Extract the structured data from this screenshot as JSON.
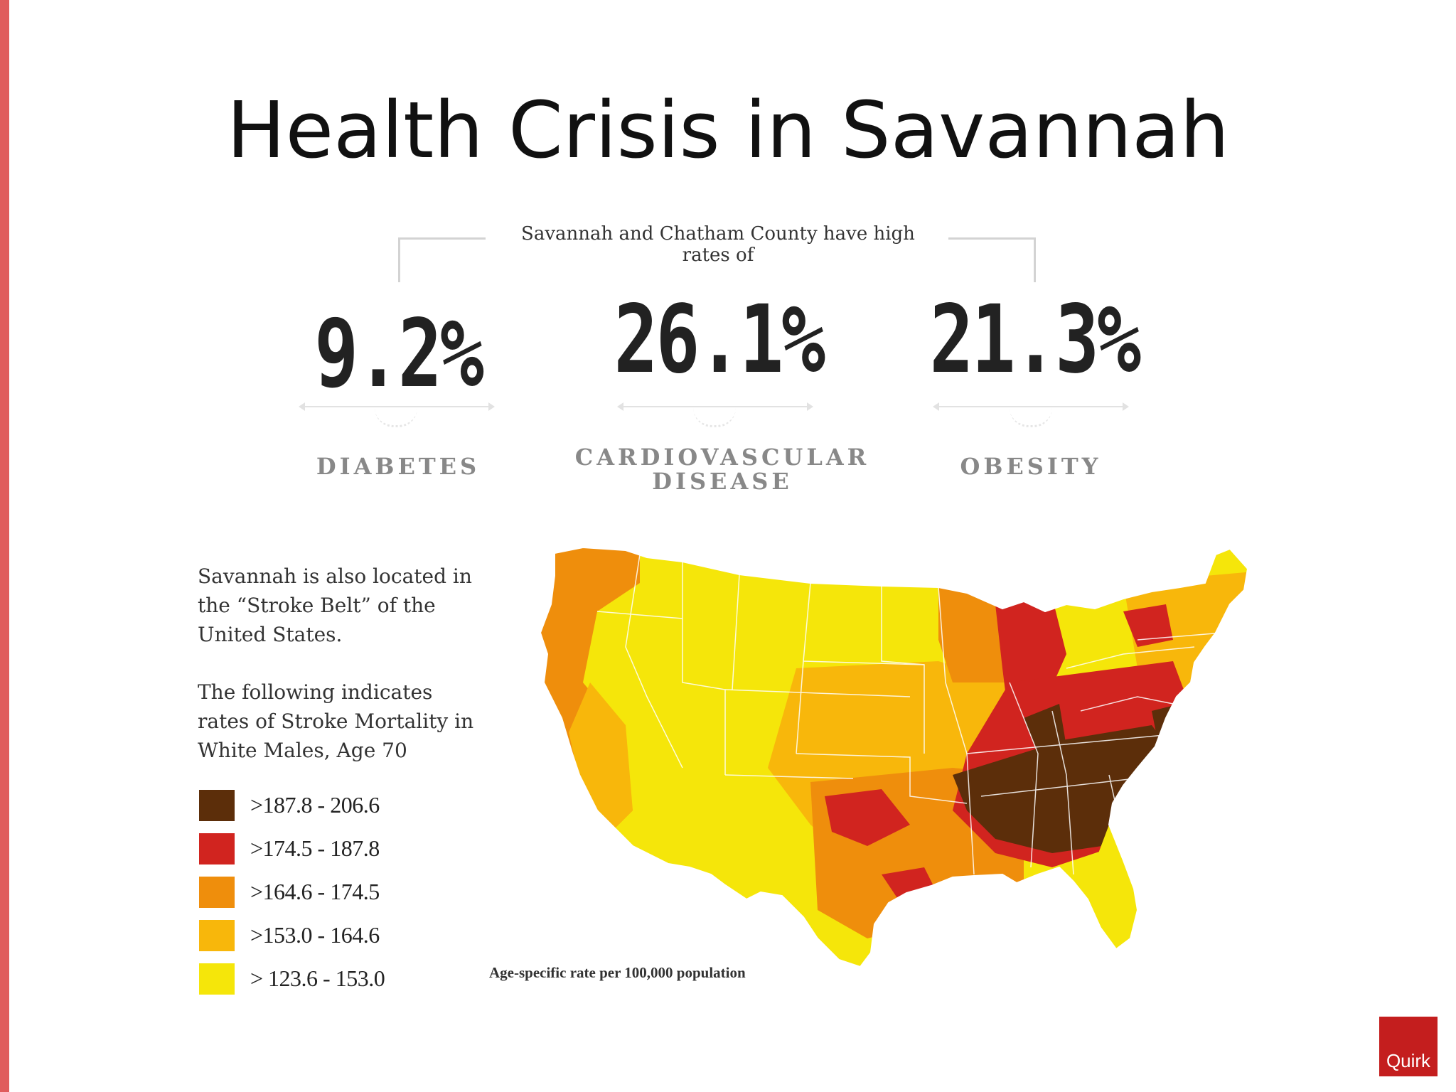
{
  "slide": {
    "title": "Health Crisis in Savannah",
    "intro": "Savannah and Chatham County have high rates of",
    "stats": [
      {
        "value": "9.2%",
        "label": "DIABETES"
      },
      {
        "value": "26.1%",
        "label": "CARDIOVASCULAR DISEASE"
      },
      {
        "value": "21.3%",
        "label": "OBESITY"
      }
    ],
    "side_text_1": "Savannah is also located in the “Stroke Belt” of the United States.",
    "side_text_2": "The following indicates rates of Stroke Mortality in White Males, Age 70",
    "legend": [
      {
        "label": ">187.8 - 206.6",
        "color": "#5c2e0a"
      },
      {
        "label": ">174.5 - 187.8",
        "color": "#d1241f"
      },
      {
        "label": ">164.6 - 174.5",
        "color": "#ef8e0c"
      },
      {
        "label": ">153.0 - 164.6",
        "color": "#f8b70b"
      },
      {
        "label": "> 123.6 - 153.0",
        "color": "#f5e60a"
      }
    ],
    "note": "Age-specific rate per 100,000 population",
    "logo_text": "Quirk"
  }
}
